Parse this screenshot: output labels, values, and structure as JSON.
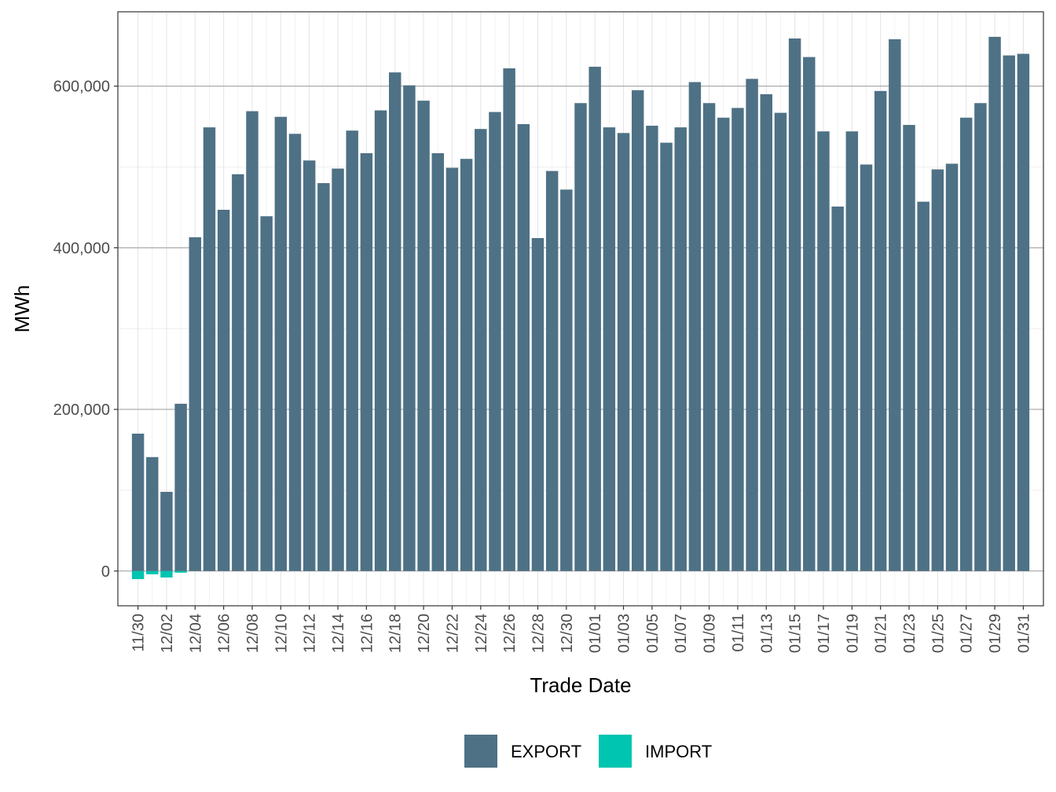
{
  "chart_data": {
    "type": "bar",
    "xlabel": "Trade Date",
    "ylabel": "MWh",
    "ylim": [
      -43000,
      692000
    ],
    "y_ticks": [
      0,
      200000,
      400000,
      600000
    ],
    "y_tick_labels": [
      "0",
      "200,000",
      "400,000",
      "600,000"
    ],
    "x_tick_labels": [
      "11/30",
      "12/02",
      "12/04",
      "12/06",
      "12/08",
      "12/10",
      "12/12",
      "12/14",
      "12/16",
      "12/18",
      "12/20",
      "12/22",
      "12/24",
      "12/26",
      "12/28",
      "12/30",
      "01/01",
      "01/03",
      "01/05",
      "01/07",
      "01/09",
      "01/11",
      "01/13",
      "01/15",
      "01/17",
      "01/19",
      "01/21",
      "01/23",
      "01/25",
      "01/27",
      "01/29",
      "01/31"
    ],
    "grid": true,
    "legend_position": "bottom",
    "categories": [
      "11/30",
      "12/01",
      "12/02",
      "12/03",
      "12/04",
      "12/05",
      "12/06",
      "12/07",
      "12/08",
      "12/09",
      "12/10",
      "12/11",
      "12/12",
      "12/13",
      "12/14",
      "12/15",
      "12/16",
      "12/17",
      "12/18",
      "12/19",
      "12/20",
      "12/21",
      "12/22",
      "12/23",
      "12/24",
      "12/25",
      "12/26",
      "12/27",
      "12/28",
      "12/29",
      "12/30",
      "12/31",
      "01/01",
      "01/02",
      "01/03",
      "01/04",
      "01/05",
      "01/06",
      "01/07",
      "01/08",
      "01/09",
      "01/10",
      "01/11",
      "01/12",
      "01/13",
      "01/14",
      "01/15",
      "01/16",
      "01/17",
      "01/18",
      "01/19",
      "01/20",
      "01/21",
      "01/22",
      "01/23",
      "01/24",
      "01/25",
      "01/26",
      "01/27",
      "01/28",
      "01/29",
      "01/30",
      "01/31"
    ],
    "series": [
      {
        "name": "EXPORT",
        "color": "#4e7185",
        "values": [
          170000,
          141000,
          98000,
          207000,
          413000,
          549000,
          447000,
          491000,
          569000,
          439000,
          562000,
          541000,
          508000,
          480000,
          498000,
          545000,
          517000,
          570000,
          617000,
          601000,
          582000,
          517000,
          499000,
          510000,
          547000,
          568000,
          622000,
          553000,
          412000,
          495000,
          472000,
          579000,
          624000,
          549000,
          542000,
          595000,
          551000,
          530000,
          549000,
          605000,
          579000,
          561000,
          573000,
          609000,
          590000,
          567000,
          659000,
          636000,
          544000,
          451000,
          544000,
          503000,
          594000,
          658000,
          552000,
          457000,
          497000,
          504000,
          561000,
          579000,
          661000,
          638000,
          640000
        ]
      },
      {
        "name": "IMPORT",
        "color": "#00c5b0",
        "values": [
          -10000,
          -4000,
          -8000,
          -2000,
          0,
          0,
          0,
          0,
          0,
          0,
          0,
          0,
          0,
          0,
          0,
          0,
          0,
          0,
          0,
          0,
          0,
          0,
          0,
          0,
          0,
          0,
          0,
          0,
          0,
          0,
          0,
          0,
          0,
          0,
          0,
          0,
          0,
          0,
          0,
          0,
          0,
          0,
          0,
          0,
          0,
          0,
          0,
          0,
          0,
          0,
          0,
          0,
          0,
          0,
          0,
          0,
          0,
          0,
          0,
          0,
          0,
          0,
          0
        ]
      }
    ]
  }
}
